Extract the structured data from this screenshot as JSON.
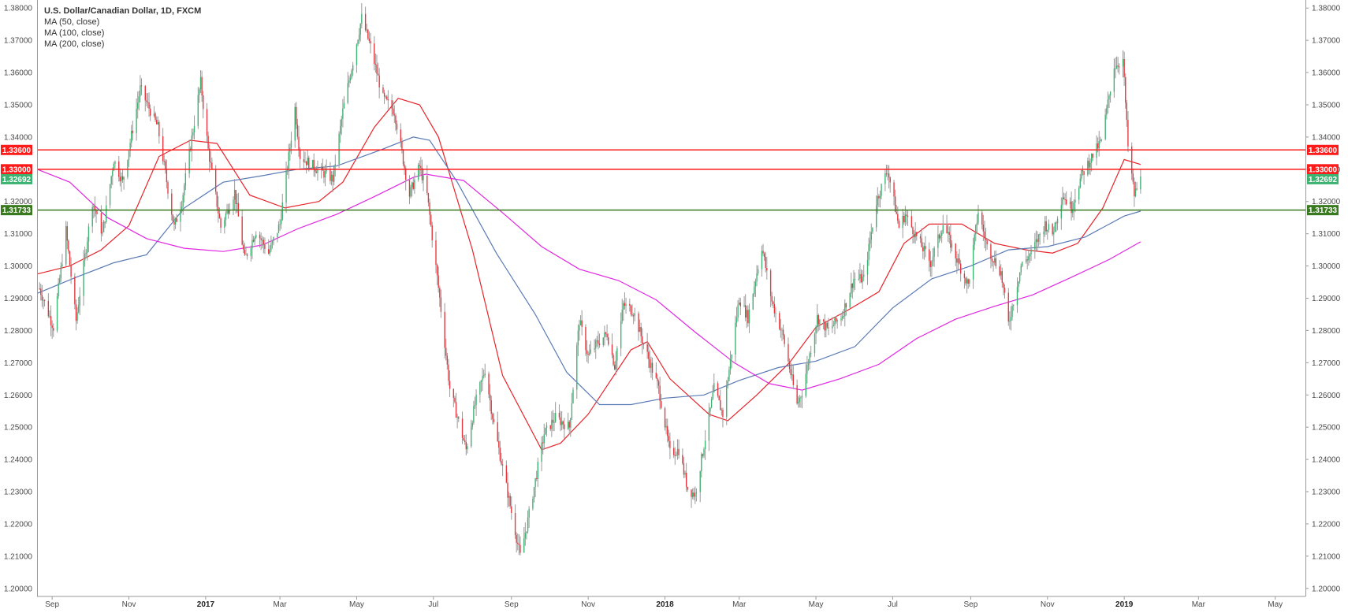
{
  "legend": {
    "title": "U.S. Dollar/Canadian Dollar, 1D, FXCM",
    "studies": [
      "MA (50, close)",
      "MA (100, close)",
      "MA (200, close)"
    ]
  },
  "colors": {
    "up_candle": "#3cb371",
    "down_candle": "#e8343c",
    "wick": "#9a9a9a",
    "ma50": "#e8232a",
    "ma100": "#5a7ab5",
    "ma200": "#e028e0",
    "resistance": "#ff1a1a",
    "support": "#3a7a1f",
    "last_price": "#3cb371"
  },
  "chart_data": {
    "type": "line",
    "title": "U.S. Dollar/Canadian Dollar, 1D, FXCM",
    "xlabel": "",
    "ylabel": "",
    "ylim": [
      1.1975,
      1.3825
    ],
    "x_range": [
      "2016-08-20",
      "2019-05-25"
    ],
    "grid": false,
    "y_ticks": [
      "1.38000",
      "1.37000",
      "1.36000",
      "1.35000",
      "1.34000",
      "1.33000",
      "1.32000",
      "1.31000",
      "1.30000",
      "1.29000",
      "1.28000",
      "1.27000",
      "1.26000",
      "1.25000",
      "1.24000",
      "1.23000",
      "1.22000",
      "1.21000",
      "1.20000"
    ],
    "x_ticks": [
      {
        "label": "Sep",
        "date": "2016-09-01",
        "bold": false
      },
      {
        "label": "Nov",
        "date": "2016-11-01",
        "bold": false
      },
      {
        "label": "2017",
        "date": "2017-01-01",
        "bold": true
      },
      {
        "label": "Mar",
        "date": "2017-03-01",
        "bold": false
      },
      {
        "label": "May",
        "date": "2017-05-01",
        "bold": false
      },
      {
        "label": "Jul",
        "date": "2017-07-01",
        "bold": false
      },
      {
        "label": "Sep",
        "date": "2017-09-01",
        "bold": false
      },
      {
        "label": "Nov",
        "date": "2017-11-01",
        "bold": false
      },
      {
        "label": "2018",
        "date": "2018-01-01",
        "bold": true
      },
      {
        "label": "Mar",
        "date": "2018-03-01",
        "bold": false
      },
      {
        "label": "May",
        "date": "2018-05-01",
        "bold": false
      },
      {
        "label": "Jul",
        "date": "2018-07-01",
        "bold": false
      },
      {
        "label": "Sep",
        "date": "2018-09-01",
        "bold": false
      },
      {
        "label": "Nov",
        "date": "2018-11-01",
        "bold": false
      },
      {
        "label": "2019",
        "date": "2019-01-01",
        "bold": true
      },
      {
        "label": "Mar",
        "date": "2019-03-01",
        "bold": false
      },
      {
        "label": "May",
        "date": "2019-05-01",
        "bold": false
      }
    ],
    "horizontal_levels": [
      {
        "label": "1.33600",
        "value": 1.336,
        "kind": "resistance"
      },
      {
        "label": "1.33000",
        "value": 1.33,
        "kind": "resistance"
      },
      {
        "label": "1.31733",
        "value": 1.31733,
        "kind": "support"
      }
    ],
    "last_price": {
      "label": "1.32692",
      "value": 1.32692
    },
    "price_path": [
      {
        "date": "2016-08-22",
        "close": 1.293
      },
      {
        "date": "2016-09-02",
        "close": 1.281
      },
      {
        "date": "2016-09-12",
        "close": 1.311
      },
      {
        "date": "2016-09-20",
        "close": 1.283
      },
      {
        "date": "2016-10-03",
        "close": 1.32
      },
      {
        "date": "2016-10-11",
        "close": 1.31
      },
      {
        "date": "2016-10-20",
        "close": 1.333
      },
      {
        "date": "2016-10-27",
        "close": 1.326
      },
      {
        "date": "2016-11-10",
        "close": 1.355
      },
      {
        "date": "2016-11-24",
        "close": 1.343
      },
      {
        "date": "2016-12-07",
        "close": 1.312
      },
      {
        "date": "2016-12-13",
        "close": 1.32
      },
      {
        "date": "2016-12-28",
        "close": 1.357
      },
      {
        "date": "2017-01-03",
        "close": 1.336
      },
      {
        "date": "2017-01-13",
        "close": 1.312
      },
      {
        "date": "2017-01-24",
        "close": 1.323
      },
      {
        "date": "2017-02-01",
        "close": 1.302
      },
      {
        "date": "2017-02-10",
        "close": 1.311
      },
      {
        "date": "2017-02-20",
        "close": 1.304
      },
      {
        "date": "2017-03-01",
        "close": 1.313
      },
      {
        "date": "2017-03-13",
        "close": 1.349
      },
      {
        "date": "2017-03-17",
        "close": 1.334
      },
      {
        "date": "2017-03-31",
        "close": 1.33
      },
      {
        "date": "2017-04-12",
        "close": 1.327
      },
      {
        "date": "2017-04-20",
        "close": 1.348
      },
      {
        "date": "2017-05-05",
        "close": 1.377
      },
      {
        "date": "2017-05-12",
        "close": 1.368
      },
      {
        "date": "2017-05-22",
        "close": 1.352
      },
      {
        "date": "2017-05-31",
        "close": 1.348
      },
      {
        "date": "2017-06-12",
        "close": 1.322
      },
      {
        "date": "2017-06-20",
        "close": 1.331
      },
      {
        "date": "2017-06-26",
        "close": 1.322
      },
      {
        "date": "2017-07-06",
        "close": 1.29
      },
      {
        "date": "2017-07-14",
        "close": 1.262
      },
      {
        "date": "2017-07-27",
        "close": 1.243
      },
      {
        "date": "2017-08-03",
        "close": 1.257
      },
      {
        "date": "2017-08-11",
        "close": 1.268
      },
      {
        "date": "2017-08-18",
        "close": 1.251
      },
      {
        "date": "2017-09-08",
        "close": 1.21
      },
      {
        "date": "2017-09-14",
        "close": 1.221
      },
      {
        "date": "2017-09-27",
        "close": 1.248
      },
      {
        "date": "2017-10-06",
        "close": 1.253
      },
      {
        "date": "2017-10-17",
        "close": 1.25
      },
      {
        "date": "2017-10-25",
        "close": 1.283
      },
      {
        "date": "2017-11-01",
        "close": 1.272
      },
      {
        "date": "2017-11-08",
        "close": 1.276
      },
      {
        "date": "2017-11-16",
        "close": 1.279
      },
      {
        "date": "2017-11-22",
        "close": 1.269
      },
      {
        "date": "2017-11-29",
        "close": 1.288
      },
      {
        "date": "2017-12-07",
        "close": 1.286
      },
      {
        "date": "2017-12-14",
        "close": 1.277
      },
      {
        "date": "2017-12-27",
        "close": 1.262
      },
      {
        "date": "2018-01-05",
        "close": 1.242
      },
      {
        "date": "2018-01-12",
        "close": 1.243
      },
      {
        "date": "2018-01-19",
        "close": 1.231
      },
      {
        "date": "2018-01-25",
        "close": 1.229
      },
      {
        "date": "2018-02-09",
        "close": 1.262
      },
      {
        "date": "2018-02-16",
        "close": 1.254
      },
      {
        "date": "2018-03-01",
        "close": 1.29
      },
      {
        "date": "2018-03-08",
        "close": 1.284
      },
      {
        "date": "2018-03-19",
        "close": 1.306
      },
      {
        "date": "2018-03-27",
        "close": 1.289
      },
      {
        "date": "2018-04-05",
        "close": 1.278
      },
      {
        "date": "2018-04-16",
        "close": 1.257
      },
      {
        "date": "2018-04-20",
        "close": 1.261
      },
      {
        "date": "2018-05-02",
        "close": 1.284
      },
      {
        "date": "2018-05-11",
        "close": 1.28
      },
      {
        "date": "2018-05-22",
        "close": 1.285
      },
      {
        "date": "2018-05-31",
        "close": 1.296
      },
      {
        "date": "2018-06-08",
        "close": 1.296
      },
      {
        "date": "2018-06-18",
        "close": 1.32
      },
      {
        "date": "2018-06-27",
        "close": 1.33
      },
      {
        "date": "2018-07-06",
        "close": 1.312
      },
      {
        "date": "2018-07-11",
        "close": 1.316
      },
      {
        "date": "2018-07-20",
        "close": 1.309
      },
      {
        "date": "2018-07-31",
        "close": 1.301
      },
      {
        "date": "2018-08-10",
        "close": 1.313
      },
      {
        "date": "2018-08-20",
        "close": 1.303
      },
      {
        "date": "2018-08-30",
        "close": 1.294
      },
      {
        "date": "2018-09-07",
        "close": 1.317
      },
      {
        "date": "2018-09-14",
        "close": 1.306
      },
      {
        "date": "2018-09-25",
        "close": 1.298
      },
      {
        "date": "2018-10-01",
        "close": 1.282
      },
      {
        "date": "2018-10-11",
        "close": 1.3
      },
      {
        "date": "2018-10-19",
        "close": 1.304
      },
      {
        "date": "2018-10-30",
        "close": 1.313
      },
      {
        "date": "2018-11-05",
        "close": 1.31
      },
      {
        "date": "2018-11-13",
        "close": 1.322
      },
      {
        "date": "2018-11-20",
        "close": 1.318
      },
      {
        "date": "2018-11-28",
        "close": 1.328
      },
      {
        "date": "2018-12-05",
        "close": 1.333
      },
      {
        "date": "2018-12-14",
        "close": 1.339
      },
      {
        "date": "2018-12-24",
        "close": 1.362
      },
      {
        "date": "2018-12-31",
        "close": 1.364
      },
      {
        "date": "2019-01-04",
        "close": 1.337
      },
      {
        "date": "2019-01-09",
        "close": 1.322
      },
      {
        "date": "2019-01-14",
        "close": 1.32692
      }
    ],
    "series": [
      {
        "name": "MA (50, close)",
        "color": "#e8232a",
        "points": [
          [
            "2016-08-20",
            1.2975
          ],
          [
            "2016-09-15",
            1.3
          ],
          [
            "2016-10-10",
            1.305
          ],
          [
            "2016-11-01",
            1.3125
          ],
          [
            "2016-11-25",
            1.334
          ],
          [
            "2016-12-20",
            1.339
          ],
          [
            "2017-01-10",
            1.338
          ],
          [
            "2017-02-05",
            1.322
          ],
          [
            "2017-03-05",
            1.318
          ],
          [
            "2017-04-01",
            1.32
          ],
          [
            "2017-04-20",
            1.326
          ],
          [
            "2017-05-15",
            1.343
          ],
          [
            "2017-06-03",
            1.352
          ],
          [
            "2017-06-20",
            1.35
          ],
          [
            "2017-07-05",
            1.34
          ],
          [
            "2017-08-01",
            1.305
          ],
          [
            "2017-08-25",
            1.266
          ],
          [
            "2017-09-25",
            1.243
          ],
          [
            "2017-10-10",
            1.245
          ],
          [
            "2017-11-01",
            1.254
          ],
          [
            "2017-12-05",
            1.274
          ],
          [
            "2017-12-18",
            1.2765
          ],
          [
            "2018-01-05",
            1.265
          ],
          [
            "2018-02-05",
            1.254
          ],
          [
            "2018-02-20",
            1.252
          ],
          [
            "2018-03-15",
            1.26
          ],
          [
            "2018-04-10",
            1.27
          ],
          [
            "2018-05-01",
            1.281
          ],
          [
            "2018-05-25",
            1.286
          ],
          [
            "2018-06-20",
            1.292
          ],
          [
            "2018-07-10",
            1.307
          ],
          [
            "2018-07-30",
            1.313
          ],
          [
            "2018-08-25",
            1.313
          ],
          [
            "2018-09-20",
            1.307
          ],
          [
            "2018-10-15",
            1.305
          ],
          [
            "2018-11-05",
            1.304
          ],
          [
            "2018-11-25",
            1.307
          ],
          [
            "2018-12-15",
            1.318
          ],
          [
            "2019-01-01",
            1.333
          ],
          [
            "2019-01-14",
            1.3315
          ]
        ]
      },
      {
        "name": "MA (100, close)",
        "color": "#5a7ab5",
        "points": [
          [
            "2016-08-20",
            1.2915
          ],
          [
            "2016-09-20",
            1.2965
          ],
          [
            "2016-10-20",
            1.301
          ],
          [
            "2016-11-15",
            1.3035
          ],
          [
            "2016-12-15",
            1.318
          ],
          [
            "2017-01-15",
            1.326
          ],
          [
            "2017-02-15",
            1.328
          ],
          [
            "2017-03-15",
            1.33
          ],
          [
            "2017-04-15",
            1.331
          ],
          [
            "2017-05-20",
            1.336
          ],
          [
            "2017-06-15",
            1.34
          ],
          [
            "2017-06-28",
            1.339
          ],
          [
            "2017-07-20",
            1.326
          ],
          [
            "2017-08-20",
            1.304
          ],
          [
            "2017-09-20",
            1.285
          ],
          [
            "2017-10-15",
            1.267
          ],
          [
            "2017-11-10",
            1.257
          ],
          [
            "2017-12-05",
            1.257
          ],
          [
            "2018-01-01",
            1.259
          ],
          [
            "2018-02-01",
            1.26
          ],
          [
            "2018-03-01",
            1.2645
          ],
          [
            "2018-04-01",
            1.2685
          ],
          [
            "2018-05-01",
            1.2705
          ],
          [
            "2018-06-01",
            1.275
          ],
          [
            "2018-07-01",
            1.287
          ],
          [
            "2018-08-01",
            1.296
          ],
          [
            "2018-09-01",
            1.3
          ],
          [
            "2018-10-01",
            1.305
          ],
          [
            "2018-11-01",
            1.306
          ],
          [
            "2018-12-01",
            1.309
          ],
          [
            "2019-01-01",
            1.3155
          ],
          [
            "2019-01-14",
            1.317
          ]
        ]
      },
      {
        "name": "MA (200, close)",
        "color": "#e028e0",
        "points": [
          [
            "2016-08-20",
            1.33
          ],
          [
            "2016-09-15",
            1.326
          ],
          [
            "2016-10-15",
            1.315
          ],
          [
            "2016-11-15",
            1.3085
          ],
          [
            "2016-12-15",
            1.3055
          ],
          [
            "2017-01-15",
            1.3045
          ],
          [
            "2017-02-15",
            1.3065
          ],
          [
            "2017-03-15",
            1.3115
          ],
          [
            "2017-04-15",
            1.316
          ],
          [
            "2017-05-15",
            1.3215
          ],
          [
            "2017-06-15",
            1.3275
          ],
          [
            "2017-06-25",
            1.3285
          ],
          [
            "2017-07-25",
            1.3265
          ],
          [
            "2017-08-25",
            1.3165
          ],
          [
            "2017-09-25",
            1.306
          ],
          [
            "2017-10-25",
            1.299
          ],
          [
            "2017-11-25",
            1.2955
          ],
          [
            "2017-12-25",
            1.2895
          ],
          [
            "2018-01-25",
            1.2795
          ],
          [
            "2018-02-25",
            1.27
          ],
          [
            "2018-03-25",
            1.2635
          ],
          [
            "2018-04-20",
            1.2615
          ],
          [
            "2018-05-20",
            1.265
          ],
          [
            "2018-06-20",
            1.2695
          ],
          [
            "2018-07-20",
            1.2775
          ],
          [
            "2018-08-20",
            1.2835
          ],
          [
            "2018-09-20",
            1.2875
          ],
          [
            "2018-10-20",
            1.291
          ],
          [
            "2018-11-20",
            1.2965
          ],
          [
            "2018-12-20",
            1.302
          ],
          [
            "2019-01-14",
            1.3075
          ]
        ]
      }
    ]
  }
}
